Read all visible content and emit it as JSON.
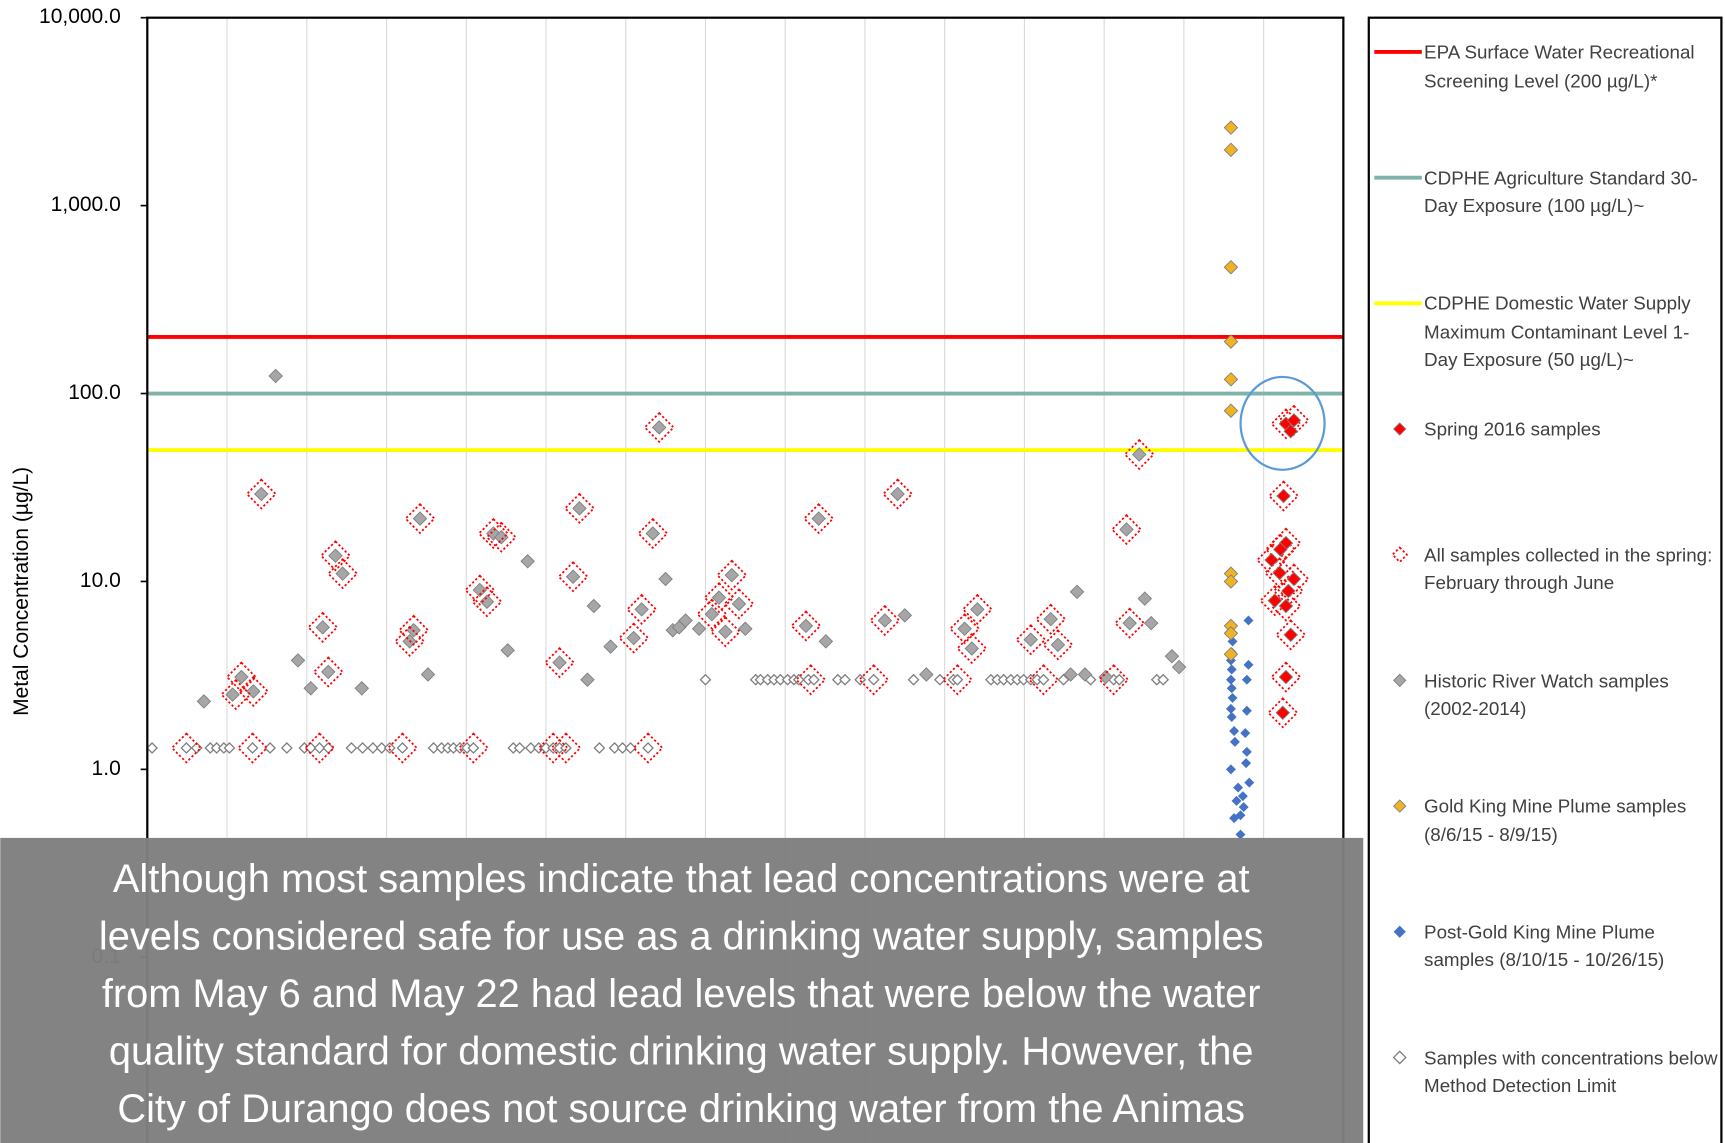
{
  "chart_data": {
    "type": "scatter",
    "y_label": "Metal Concentration  (µg/L)",
    "yscale": "log",
    "ylim": [
      0.01,
      10000
    ],
    "yticks": [
      {
        "value": 10000,
        "label": "10,000.0"
      },
      {
        "value": 1000,
        "label": "1,000.0"
      },
      {
        "value": 100,
        "label": "100.0"
      },
      {
        "value": 10,
        "label": "10.0"
      },
      {
        "value": 1,
        "label": "1.0"
      },
      {
        "value": 0.1,
        "label": "0.1"
      }
    ],
    "xlim": [
      0,
      15
    ],
    "xticks": [
      1,
      2,
      3,
      4,
      5,
      6,
      7,
      8,
      9,
      10,
      11,
      12,
      13,
      14
    ],
    "grid": "x",
    "reference_lines": [
      {
        "name": "EPA Surface Water Recreational Screening Level (200 µg/L)*",
        "color": "#ff0000",
        "value": 200
      },
      {
        "name": "CDPHE Agriculture Standard 30-Day Exposure (100 µg/L)~",
        "color": "#7fb2a8",
        "value": 100
      },
      {
        "name": "CDPHE Domestic Water Supply Maximum Contaminant Level 1-Day Exposure (50 µg/L)~",
        "color": "#ffff00",
        "value": 50
      }
    ],
    "series": [
      {
        "name": "Spring 2016 samples",
        "color": "#ff0000",
        "marker": "filled",
        "x": [
          14.28,
          14.38,
          14.34,
          14.25,
          14.28,
          14.21,
          14.1,
          14.2,
          14.38,
          14.31,
          14.14,
          14.28,
          14.34,
          14.28,
          14.24
        ],
        "values": [
          69,
          72,
          63,
          28.5,
          16,
          14.8,
          13,
          11.1,
          10.3,
          8.9,
          7.9,
          7.4,
          5.2,
          3.1,
          2.0
        ]
      },
      {
        "name": "All samples collected in the spring: February through June",
        "color": "#ff0000",
        "marker": "dotted",
        "x": [
          0.49,
          1.43,
          1.18,
          1.33,
          1.11,
          1.32,
          2.2,
          2.27,
          2.36,
          2.45,
          2.16,
          3.2,
          3.29,
          3.34,
          3.42,
          4.09,
          4.17,
          4.26,
          4.34,
          4.44,
          5.09,
          5.17,
          5.25,
          5.34,
          5.42,
          6.1,
          6.2,
          6.34,
          6.42,
          6.28,
          7.08,
          7.17,
          7.25,
          7.33,
          7.42,
          8.26,
          8.32,
          8.42,
          9.11,
          9.25,
          9.41,
          10.16,
          10.25,
          10.34,
          10.41,
          11.08,
          11.24,
          11.33,
          11.42,
          12.12,
          12.28,
          12.32,
          12.44,
          14.28,
          14.38,
          14.25,
          14.28,
          14.21,
          14.1,
          14.2,
          14.38,
          14.31,
          14.14,
          14.28,
          14.34,
          14.28,
          14.24
        ],
        "values": [
          1.3,
          29.2,
          3.1,
          2.6,
          2.5,
          1.3,
          5.7,
          3.3,
          13.7,
          11,
          1.3,
          1.3,
          4.8,
          5.5,
          21.6,
          1.3,
          9,
          7.8,
          18,
          17.2,
          1.3,
          3.7,
          1.3,
          10.6,
          24.5,
          5.0,
          7.1,
          18,
          66,
          1.3,
          6.7,
          8.2,
          5.4,
          10.8,
          7.6,
          5.8,
          3.0,
          21.6,
          3.0,
          6.2,
          29.2,
          3.0,
          5.6,
          4.4,
          7.1,
          4.9,
          3.0,
          6.3,
          4.6,
          3.0,
          18.9,
          6.0,
          47.4,
          69,
          72,
          28.5,
          16,
          14.8,
          13,
          11.1,
          10.3,
          8.9,
          7.9,
          7.4,
          5.2,
          3.1,
          2.0
        ]
      },
      {
        "name": "Historic River Watch samples (2002-2014)",
        "color": "#a6a6a6",
        "marker": "filled",
        "x": [
          1.61,
          0.71,
          1.18,
          1.33,
          1.07,
          1.89,
          2.05,
          2.2,
          2.27,
          2.36,
          2.45,
          2.69,
          3.29,
          3.34,
          3.42,
          3.52,
          4.17,
          4.26,
          4.34,
          4.44,
          4.52,
          4.77,
          5.17,
          5.34,
          5.42,
          5.52,
          5.6,
          5.81,
          6.1,
          6.2,
          6.34,
          6.42,
          6.5,
          6.59,
          6.67,
          6.75,
          6.92,
          7.08,
          7.17,
          7.25,
          7.33,
          7.42,
          7.5,
          8.26,
          8.42,
          8.51,
          9.25,
          9.41,
          9.5,
          9.77,
          10.25,
          10.34,
          10.41,
          11.08,
          11.33,
          11.42,
          11.58,
          11.66,
          11.76,
          12.02,
          12.28,
          12.32,
          12.44,
          12.51,
          12.59,
          12.85,
          12.94,
          1.43
        ],
        "values": [
          124,
          2.3,
          3.1,
          2.6,
          2.5,
          3.8,
          2.7,
          5.7,
          3.3,
          13.7,
          11,
          2.7,
          4.8,
          5.5,
          21.6,
          3.2,
          9,
          7.8,
          18,
          17.2,
          4.3,
          12.8,
          3.7,
          10.6,
          24.5,
          3.0,
          7.4,
          4.5,
          5.0,
          7.1,
          18,
          66,
          10.3,
          5.5,
          5.7,
          6.2,
          5.6,
          6.7,
          8.2,
          5.4,
          10.8,
          7.6,
          5.6,
          5.8,
          21.6,
          4.8,
          6.2,
          29.2,
          6.6,
          3.2,
          5.6,
          4.4,
          7.1,
          4.9,
          6.3,
          4.6,
          3.2,
          8.8,
          3.2,
          3.1,
          18.9,
          6.0,
          47.4,
          8.1,
          6.0,
          4.0,
          3.5,
          29.2
        ]
      },
      {
        "name": "Gold King Mine Plume samples (8/6/15 - 8/9/15)",
        "color": "#f0b323",
        "marker": "filled",
        "x": [
          13.59,
          13.59,
          13.59,
          13.59,
          13.59,
          13.59,
          13.59,
          13.59,
          13.59,
          13.59,
          13.59
        ],
        "values": [
          2600,
          1980,
          470,
          189,
          119,
          81,
          11,
          10,
          5.8,
          5.3,
          4.1
        ]
      },
      {
        "name": "Post-Gold King Mine Plume samples (8/10/15 - 10/26/15)",
        "color": "#4472c4",
        "marker": "small",
        "x": [
          13.61,
          13.6,
          13.59,
          13.6,
          13.59,
          13.6,
          13.61,
          13.59,
          13.6,
          13.63,
          13.64,
          13.59,
          13.81,
          13.81,
          13.79,
          13.79,
          13.77,
          13.79,
          13.78,
          13.82,
          13.68,
          13.74,
          13.63,
          13.71,
          13.66,
          13.75,
          13.71
        ],
        "values": [
          4.8,
          4.2,
          3.8,
          3.4,
          3.0,
          2.7,
          2.4,
          2.1,
          1.9,
          1.6,
          1.4,
          1.0,
          6.2,
          3.6,
          3.0,
          2.05,
          1.56,
          1.24,
          1.08,
          0.85,
          0.8,
          0.72,
          0.55,
          0.57,
          0.68,
          0.63,
          0.45
        ]
      },
      {
        "name": "Samples with concentrations below Method Detection Limit",
        "color": "#808080",
        "marker": "hollow",
        "x": [
          0.06,
          0.49,
          0.62,
          0.79,
          0.87,
          0.96,
          1.03,
          1.32,
          1.54,
          1.75,
          1.97,
          2.05,
          2.16,
          2.27,
          2.56,
          2.7,
          2.83,
          2.94,
          3.04,
          3.2,
          3.59,
          3.69,
          3.77,
          3.84,
          3.92,
          4.01,
          4.09,
          4.59,
          4.67,
          4.81,
          4.91,
          5.0,
          5.09,
          5.17,
          5.25,
          5.67,
          5.86,
          5.96,
          6.06,
          6.28,
          7.0,
          7.63,
          7.69,
          7.78,
          7.86,
          7.94,
          8.03,
          8.11,
          8.17,
          8.29,
          8.36,
          8.66,
          8.75,
          8.94,
          9.11,
          9.61,
          9.94,
          10.11,
          10.16,
          10.58,
          10.66,
          10.74,
          10.83,
          10.91,
          10.99,
          11.08,
          11.16,
          11.24,
          11.49,
          11.83,
          12.12,
          12.19,
          12.66,
          12.74
        ],
        "values": [
          1.3,
          1.3,
          1.3,
          1.3,
          1.3,
          1.3,
          1.3,
          1.3,
          1.3,
          1.3,
          1.3,
          1.3,
          1.3,
          1.3,
          1.3,
          1.3,
          1.3,
          1.3,
          1.3,
          1.3,
          1.3,
          1.3,
          1.3,
          1.3,
          1.3,
          1.3,
          1.3,
          1.3,
          1.3,
          1.3,
          1.3,
          1.3,
          1.3,
          1.3,
          1.3,
          1.3,
          1.3,
          1.3,
          1.3,
          1.3,
          3.0,
          3.0,
          3.0,
          3.0,
          3.0,
          3.0,
          3.0,
          3.0,
          3.0,
          3.0,
          3.0,
          3.0,
          3.0,
          3.0,
          3.0,
          3.0,
          3.0,
          3.0,
          3.0,
          3.0,
          3.0,
          3.0,
          3.0,
          3.0,
          3.0,
          3.0,
          3.0,
          3.0,
          3.0,
          3.0,
          3.0,
          3.0,
          3.0,
          3.0
        ]
      }
    ],
    "annotation": [
      "Although most samples indicate that lead concentrations were at",
      "levels considered safe for use as a drinking water supply, samples",
      "from May 6 and May 22 had lead levels that were below the water",
      "quality standard for domestic drinking water supply. However, the",
      "City of Durango does not source drinking water from the Animas"
    ]
  }
}
